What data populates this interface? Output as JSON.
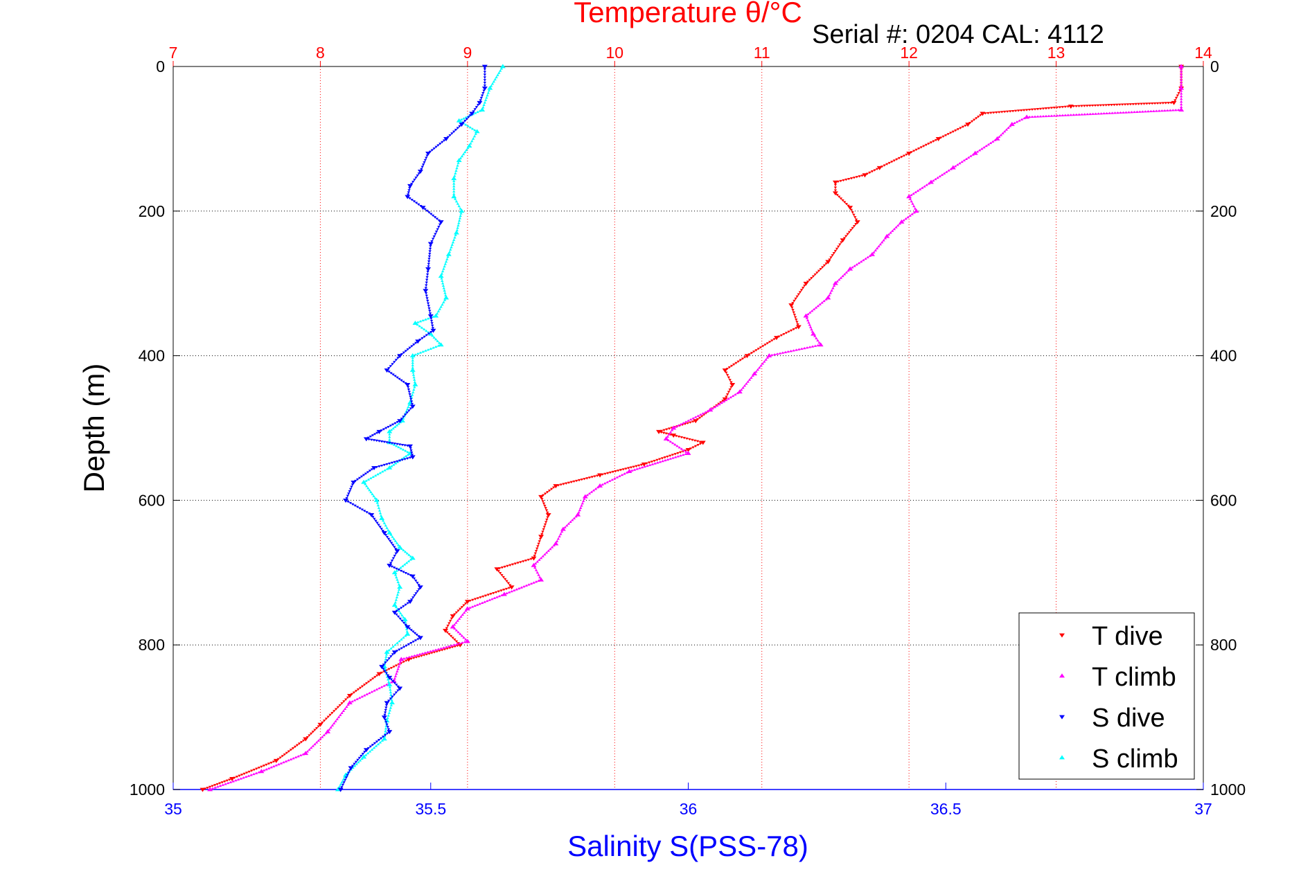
{
  "chart_data": {
    "type": "scatter",
    "title": "Temperature θ/°C",
    "subtitle": "Serial #: 0204  CAL: 4112",
    "xlabel": "Salinity S(PSS-78)",
    "ylabel": "Depth (m)",
    "top_axis": {
      "label": "Temperature θ/°C",
      "range": [
        7,
        14
      ],
      "ticks": [
        "7",
        "8",
        "9",
        "10",
        "11",
        "12",
        "13",
        "14"
      ],
      "grid": true,
      "color": "#ff0000"
    },
    "bottom_axis": {
      "label": "Salinity S(PSS-78)",
      "range": [
        35,
        37
      ],
      "ticks": [
        "35",
        "35.5",
        "36",
        "36.5",
        "37"
      ],
      "color": "#0000ff"
    },
    "y_axis": {
      "label": "Depth (m)",
      "range": [
        0,
        1000
      ],
      "reversed": true,
      "ticks": [
        "0",
        "200",
        "400",
        "600",
        "800",
        "1000"
      ],
      "grid": true
    },
    "legend": {
      "placement": "bottom-right",
      "entries": [
        "T dive",
        "T climb",
        "S dive",
        "S climb"
      ]
    },
    "series": [
      {
        "name": "T dive",
        "axis": "temperature",
        "color": "#ff0000",
        "marker": "triangle-down",
        "points": [
          [
            13.85,
            0
          ],
          [
            13.85,
            30
          ],
          [
            13.8,
            50
          ],
          [
            13.1,
            55
          ],
          [
            12.5,
            65
          ],
          [
            12.4,
            80
          ],
          [
            12.2,
            100
          ],
          [
            12.0,
            120
          ],
          [
            11.8,
            140
          ],
          [
            11.7,
            150
          ],
          [
            11.5,
            160
          ],
          [
            11.5,
            175
          ],
          [
            11.6,
            195
          ],
          [
            11.65,
            215
          ],
          [
            11.55,
            240
          ],
          [
            11.45,
            270
          ],
          [
            11.3,
            300
          ],
          [
            11.2,
            330
          ],
          [
            11.25,
            360
          ],
          [
            11.1,
            375
          ],
          [
            10.9,
            400
          ],
          [
            10.75,
            420
          ],
          [
            10.8,
            440
          ],
          [
            10.75,
            460
          ],
          [
            10.55,
            490
          ],
          [
            10.3,
            505
          ],
          [
            10.4,
            510
          ],
          [
            10.6,
            520
          ],
          [
            10.5,
            530
          ],
          [
            10.2,
            550
          ],
          [
            9.9,
            565
          ],
          [
            9.6,
            580
          ],
          [
            9.5,
            595
          ],
          [
            9.55,
            620
          ],
          [
            9.5,
            650
          ],
          [
            9.45,
            680
          ],
          [
            9.2,
            695
          ],
          [
            9.3,
            720
          ],
          [
            9.0,
            740
          ],
          [
            8.9,
            760
          ],
          [
            8.85,
            780
          ],
          [
            8.95,
            800
          ],
          [
            8.6,
            820
          ],
          [
            8.4,
            840
          ],
          [
            8.2,
            870
          ],
          [
            8.0,
            910
          ],
          [
            7.9,
            930
          ],
          [
            7.7,
            960
          ],
          [
            7.4,
            985
          ],
          [
            7.2,
            1000
          ]
        ]
      },
      {
        "name": "T climb",
        "axis": "temperature",
        "color": "#ff00ff",
        "marker": "triangle-up",
        "points": [
          [
            13.85,
            0
          ],
          [
            13.85,
            30
          ],
          [
            13.85,
            60
          ],
          [
            12.8,
            70
          ],
          [
            12.7,
            80
          ],
          [
            12.6,
            100
          ],
          [
            12.45,
            120
          ],
          [
            12.3,
            140
          ],
          [
            12.15,
            160
          ],
          [
            12.0,
            180
          ],
          [
            12.05,
            200
          ],
          [
            11.95,
            215
          ],
          [
            11.85,
            235
          ],
          [
            11.75,
            260
          ],
          [
            11.6,
            280
          ],
          [
            11.5,
            300
          ],
          [
            11.45,
            320
          ],
          [
            11.3,
            345
          ],
          [
            11.35,
            370
          ],
          [
            11.4,
            385
          ],
          [
            11.05,
            400
          ],
          [
            10.95,
            425
          ],
          [
            10.85,
            450
          ],
          [
            10.65,
            475
          ],
          [
            10.4,
            500
          ],
          [
            10.35,
            515
          ],
          [
            10.5,
            535
          ],
          [
            10.1,
            560
          ],
          [
            9.9,
            580
          ],
          [
            9.8,
            595
          ],
          [
            9.75,
            620
          ],
          [
            9.65,
            640
          ],
          [
            9.6,
            660
          ],
          [
            9.45,
            690
          ],
          [
            9.5,
            710
          ],
          [
            9.25,
            730
          ],
          [
            9.0,
            750
          ],
          [
            8.9,
            775
          ],
          [
            9.0,
            795
          ],
          [
            8.55,
            820
          ],
          [
            8.5,
            850
          ],
          [
            8.2,
            880
          ],
          [
            8.05,
            920
          ],
          [
            7.9,
            950
          ],
          [
            7.6,
            975
          ],
          [
            7.25,
            1000
          ]
        ]
      },
      {
        "name": "S dive",
        "axis": "salinity",
        "color": "#0000ff",
        "marker": "triangle-down",
        "points": [
          [
            35.605,
            0
          ],
          [
            35.605,
            30
          ],
          [
            35.595,
            50
          ],
          [
            35.58,
            65
          ],
          [
            35.56,
            80
          ],
          [
            35.53,
            100
          ],
          [
            35.495,
            120
          ],
          [
            35.48,
            145
          ],
          [
            35.46,
            165
          ],
          [
            35.455,
            180
          ],
          [
            35.485,
            195
          ],
          [
            35.52,
            215
          ],
          [
            35.5,
            245
          ],
          [
            35.495,
            280
          ],
          [
            35.49,
            310
          ],
          [
            35.5,
            345
          ],
          [
            35.505,
            365
          ],
          [
            35.475,
            380
          ],
          [
            35.44,
            400
          ],
          [
            35.415,
            420
          ],
          [
            35.455,
            440
          ],
          [
            35.465,
            470
          ],
          [
            35.44,
            490
          ],
          [
            35.4,
            505
          ],
          [
            35.375,
            515
          ],
          [
            35.46,
            525
          ],
          [
            35.465,
            540
          ],
          [
            35.39,
            555
          ],
          [
            35.35,
            575
          ],
          [
            35.335,
            600
          ],
          [
            35.385,
            620
          ],
          [
            35.41,
            645
          ],
          [
            35.435,
            670
          ],
          [
            35.42,
            690
          ],
          [
            35.465,
            705
          ],
          [
            35.48,
            720
          ],
          [
            35.46,
            740
          ],
          [
            35.43,
            755
          ],
          [
            35.455,
            775
          ],
          [
            35.48,
            790
          ],
          [
            35.43,
            810
          ],
          [
            35.405,
            830
          ],
          [
            35.42,
            845
          ],
          [
            35.44,
            860
          ],
          [
            35.415,
            880
          ],
          [
            35.41,
            900
          ],
          [
            35.42,
            920
          ],
          [
            35.375,
            945
          ],
          [
            35.345,
            970
          ],
          [
            35.325,
            1000
          ]
        ]
      },
      {
        "name": "S climb",
        "axis": "salinity",
        "color": "#00ffff",
        "marker": "triangle-up",
        "points": [
          [
            35.64,
            0
          ],
          [
            35.615,
            30
          ],
          [
            35.6,
            60
          ],
          [
            35.555,
            75
          ],
          [
            35.59,
            90
          ],
          [
            35.575,
            110
          ],
          [
            35.555,
            130
          ],
          [
            35.545,
            155
          ],
          [
            35.545,
            180
          ],
          [
            35.56,
            200
          ],
          [
            35.55,
            230
          ],
          [
            35.535,
            260
          ],
          [
            35.52,
            290
          ],
          [
            35.53,
            320
          ],
          [
            35.51,
            345
          ],
          [
            35.47,
            355
          ],
          [
            35.5,
            370
          ],
          [
            35.52,
            385
          ],
          [
            35.465,
            400
          ],
          [
            35.465,
            420
          ],
          [
            35.47,
            440
          ],
          [
            35.46,
            465
          ],
          [
            35.445,
            490
          ],
          [
            35.42,
            505
          ],
          [
            35.42,
            520
          ],
          [
            35.46,
            535
          ],
          [
            35.42,
            555
          ],
          [
            35.37,
            575
          ],
          [
            35.395,
            600
          ],
          [
            35.405,
            625
          ],
          [
            35.42,
            645
          ],
          [
            35.44,
            665
          ],
          [
            35.465,
            680
          ],
          [
            35.43,
            700
          ],
          [
            35.44,
            720
          ],
          [
            35.43,
            745
          ],
          [
            35.45,
            765
          ],
          [
            35.455,
            785
          ],
          [
            35.415,
            810
          ],
          [
            35.41,
            830
          ],
          [
            35.42,
            855
          ],
          [
            35.425,
            880
          ],
          [
            35.415,
            905
          ],
          [
            35.41,
            930
          ],
          [
            35.37,
            955
          ],
          [
            35.335,
            980
          ],
          [
            35.32,
            1000
          ]
        ]
      }
    ]
  }
}
